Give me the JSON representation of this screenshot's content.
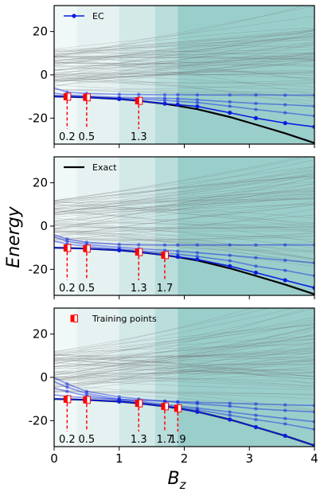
{
  "chart_data": {
    "type": "line",
    "ylabel": "Energy",
    "xlabel_main": "B",
    "xlabel_sub": "z",
    "xlim": [
      0,
      4
    ],
    "ylim": [
      -32,
      32
    ],
    "xticks": [
      "0",
      "1",
      "2",
      "3",
      "4"
    ],
    "yticks": [
      20,
      0,
      -20
    ],
    "colors": {
      "ec": "#0b1de0",
      "exact": "#000000",
      "training": "#ff0000",
      "shade": "#0e8a84",
      "background_lines": "#6b6b6b"
    },
    "series_x": [
      0,
      0.2,
      0.5,
      1.0,
      1.3,
      1.7,
      1.9,
      2.2,
      2.7,
      3.1,
      3.55,
      4.0
    ],
    "exact": [
      -10.0,
      -10.1,
      -10.4,
      -11.2,
      -12.0,
      -13.4,
      -14.3,
      -15.9,
      -19.5,
      -23.0,
      -27.0,
      -31.5
    ],
    "panels": [
      {
        "legend": "EC",
        "legend_kind": "ec",
        "training_x": [
          0.2,
          0.5,
          1.3
        ],
        "training_labels": [
          "0.2",
          "0.5",
          "1.3"
        ],
        "ec_main": [
          -10.0,
          -10.1,
          -10.4,
          -11.2,
          -12.0,
          -13.3,
          -13.8,
          -14.6,
          -17.5,
          -20.0,
          -22.3,
          -24.0
        ],
        "ec_excited": [
          [
            -6.0,
            -8.0,
            -8.6,
            -9.0,
            -9.1,
            -9.2,
            -9.2,
            -9.3,
            -9.3,
            -9.3,
            -9.4,
            -9.4
          ],
          [
            -8.5,
            -9.2,
            -9.8,
            -10.4,
            -10.6,
            -10.8,
            -11.0,
            -11.5,
            -12.5,
            -13.2,
            -13.8,
            -14.5
          ],
          [
            -9.5,
            -9.8,
            -10.2,
            -10.8,
            -11.2,
            -11.8,
            -12.2,
            -12.8,
            -14.5,
            -16.0,
            -17.5,
            -19.0
          ]
        ]
      },
      {
        "legend": "Exact",
        "legend_kind": "exact",
        "training_x": [
          0.2,
          0.5,
          1.3,
          1.7
        ],
        "training_labels": [
          "0.2",
          "0.5",
          "1.3",
          "1.7"
        ],
        "ec_main": [
          -10.0,
          -10.1,
          -10.4,
          -11.2,
          -12.0,
          -13.4,
          -14.2,
          -15.4,
          -18.5,
          -21.5,
          -25.0,
          -28.5
        ],
        "ec_excited": [
          [
            -4.0,
            -6.0,
            -7.5,
            -8.4,
            -8.6,
            -8.7,
            -8.7,
            -8.7,
            -8.7,
            -8.7,
            -8.7,
            -8.7
          ],
          [
            -5.0,
            -7.0,
            -8.5,
            -9.8,
            -10.4,
            -11.2,
            -11.6,
            -12.3,
            -13.5,
            -14.6,
            -15.8,
            -17.0
          ],
          [
            -7.0,
            -8.2,
            -9.4,
            -10.6,
            -11.3,
            -12.4,
            -13.0,
            -14.0,
            -16.0,
            -18.5,
            -20.5,
            -23.0
          ]
        ]
      },
      {
        "legend": "Training points",
        "legend_kind": "training",
        "training_x": [
          0.2,
          0.5,
          1.3,
          1.7,
          1.9
        ],
        "training_labels": [
          "0.2",
          "0.5",
          "1.3",
          "1.7",
          "1.9"
        ],
        "ec_main": [
          -10.0,
          -10.1,
          -10.4,
          -11.2,
          -12.0,
          -13.4,
          -14.3,
          -15.9,
          -19.5,
          -23.0,
          -27.0,
          -31.5
        ],
        "ec_excited": [
          [
            0.0,
            -3.0,
            -6.5,
            -9.0,
            -10.0,
            -11.0,
            -11.6,
            -12.2,
            -13.3,
            -14.5,
            -15.3,
            -16.0
          ],
          [
            -2.0,
            -4.5,
            -7.5,
            -10.0,
            -11.0,
            -12.5,
            -13.2,
            -14.2,
            -16.0,
            -17.5,
            -19.0,
            -20.5
          ],
          [
            -5.0,
            -6.5,
            -8.5,
            -10.5,
            -11.5,
            -13.0,
            -13.8,
            -15.0,
            -17.5,
            -19.5,
            -21.5,
            -24.0
          ],
          [
            -8.0,
            -8.8,
            -9.5,
            -10.2,
            -10.6,
            -11.0,
            -11.2,
            -11.5,
            -12.0,
            -12.3,
            -12.7,
            -13.0
          ]
        ]
      }
    ]
  }
}
